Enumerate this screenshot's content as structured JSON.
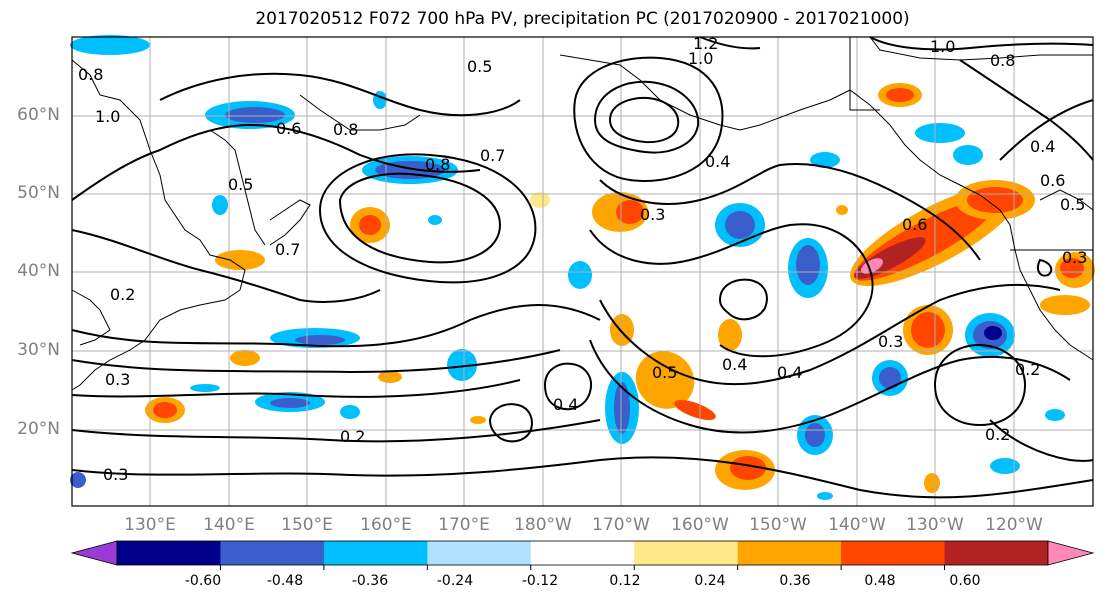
{
  "title": "2017020512 F072 700 hPa PV, precipitation PC (2017020900 - 2017021000)",
  "map": {
    "lat_labels": [
      "60°N",
      "50°N",
      "40°N",
      "30°N",
      "20°N"
    ],
    "lon_labels": [
      "130°E",
      "140°E",
      "150°E",
      "160°E",
      "170°E",
      "180°W",
      "170°W",
      "160°W",
      "150°W",
      "140°W",
      "130°W",
      "120°W"
    ],
    "contour_labels": [
      "0.5",
      "1.2",
      "1.0",
      "1.0",
      "0.8",
      "0.8",
      "1.0",
      "0.6",
      "0.8",
      "0.5",
      "0.8",
      "0.7",
      "0.4",
      "0.3",
      "0.7",
      "0.6",
      "0.6",
      "0.5",
      "0.4",
      "0.3",
      "0.4",
      "0.4",
      "0.5",
      "0.3",
      "0.2",
      "0.2",
      "0.2",
      "0.3",
      "0.3",
      "0.4",
      "0.2"
    ]
  },
  "colorbar": {
    "labels": [
      "-0.60",
      "-0.48",
      "-0.36",
      "-0.24",
      "-0.12",
      "0.12",
      "0.24",
      "0.36",
      "0.48",
      "0.60"
    ],
    "colors": [
      "#9c3ad6",
      "#00008b",
      "#3a5fcd",
      "#00bfff",
      "#b0e2ff",
      "#ffffff",
      "#ffe88a",
      "#ffa500",
      "#ff4500",
      "#b22222",
      "#ff88b8"
    ]
  }
}
